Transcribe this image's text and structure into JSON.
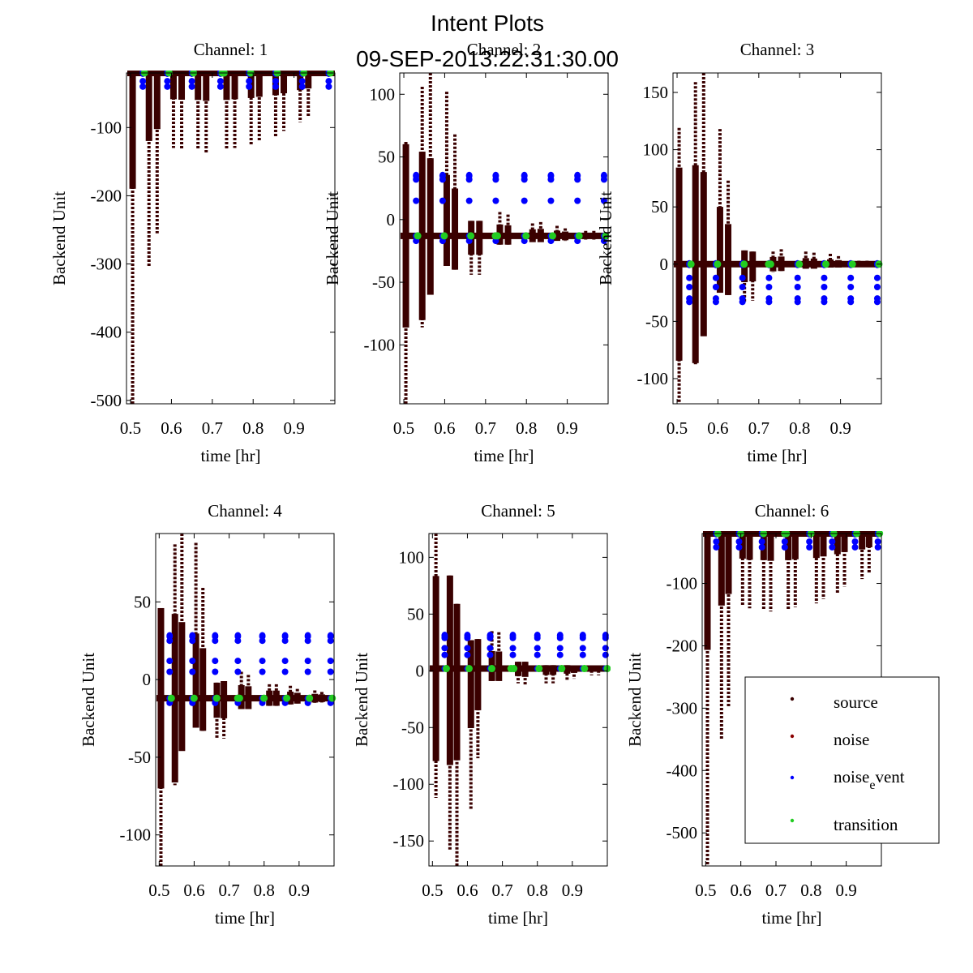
{
  "figure": {
    "title_line1": "Intent Plots",
    "title_line2": "09-SEP-2013:22:31:30.00"
  },
  "colors": {
    "source": "#3a0000",
    "noise": "#8b0000",
    "noise_event": "#0000ff",
    "transition": "#22cc22"
  },
  "legend": {
    "placement": "center-right of Channel 6",
    "entries": [
      {
        "label": "source",
        "color_key": "source"
      },
      {
        "label": "noise",
        "color_key": "noise"
      },
      {
        "label": "noise",
        "sub": "e",
        "rest": "vent",
        "color_key": "noise_event"
      },
      {
        "label": "transition",
        "color_key": "transition"
      }
    ]
  },
  "chart_data": [
    {
      "type": "scatter",
      "title": "Channel: 1",
      "xlabel": "time [hr]",
      "ylabel": "Backend Unit",
      "xlim": [
        0.49,
        1.0
      ],
      "ylim": [
        -505,
        -20
      ],
      "xticks": [
        0.5,
        0.6,
        0.7,
        0.8,
        0.9
      ],
      "yticks": [
        -100,
        -200,
        -300,
        -400,
        -500
      ],
      "baseline": -20,
      "scans": [
        {
          "t": 0.505,
          "min": -505,
          "max": -20
        },
        {
          "t": 0.545,
          "min": -305,
          "max": -20
        },
        {
          "t": 0.565,
          "min": -255,
          "max": -20
        },
        {
          "t": 0.605,
          "min": -130,
          "max": -20
        },
        {
          "t": 0.625,
          "min": -132,
          "max": -20
        },
        {
          "t": 0.665,
          "min": -133,
          "max": -20
        },
        {
          "t": 0.685,
          "min": -137,
          "max": -20
        },
        {
          "t": 0.735,
          "min": -133,
          "max": -20
        },
        {
          "t": 0.755,
          "min": -130,
          "max": -20
        },
        {
          "t": 0.795,
          "min": -125,
          "max": -20
        },
        {
          "t": 0.815,
          "min": -120,
          "max": -20
        },
        {
          "t": 0.855,
          "min": -113,
          "max": -20
        },
        {
          "t": 0.875,
          "min": -105,
          "max": -20
        },
        {
          "t": 0.915,
          "min": -92,
          "max": -20
        },
        {
          "t": 0.935,
          "min": -85,
          "max": -20
        }
      ],
      "noise_event": {
        "times": [
          0.53,
          0.59,
          0.65,
          0.72,
          0.79,
          0.855,
          0.92,
          0.985
        ],
        "values": [
          -20,
          -32,
          -40
        ]
      },
      "transition": {
        "times": [
          0.53,
          0.59,
          0.65,
          0.72,
          0.725,
          0.79,
          0.855,
          0.92,
          0.985
        ],
        "value": -20
      }
    },
    {
      "type": "scatter",
      "title": "Channel: 2",
      "xlabel": "time [hr]",
      "ylabel": "Backend Unit",
      "xlim": [
        0.49,
        1.0
      ],
      "ylim": [
        -147,
        117
      ],
      "xticks": [
        0.5,
        0.6,
        0.7,
        0.8,
        0.9
      ],
      "yticks": [
        100,
        50,
        0,
        -50,
        -100
      ],
      "baseline": -13,
      "scans": [
        {
          "t": 0.505,
          "min": -147,
          "max": 62
        },
        {
          "t": 0.545,
          "min": -86,
          "max": 106
        },
        {
          "t": 0.565,
          "min": -60,
          "max": 117
        },
        {
          "t": 0.605,
          "min": -37,
          "max": 102
        },
        {
          "t": 0.625,
          "min": -40,
          "max": 68
        },
        {
          "t": 0.665,
          "min": -44,
          "max": -1
        },
        {
          "t": 0.685,
          "min": -44,
          "max": -1
        },
        {
          "t": 0.735,
          "min": -20,
          "max": 6
        },
        {
          "t": 0.755,
          "min": -20,
          "max": 4
        },
        {
          "t": 0.815,
          "min": -18,
          "max": -3
        },
        {
          "t": 0.835,
          "min": -18,
          "max": -2
        },
        {
          "t": 0.875,
          "min": -17,
          "max": -5
        },
        {
          "t": 0.895,
          "min": -17,
          "max": -7
        },
        {
          "t": 0.945,
          "min": -16,
          "max": -9
        },
        {
          "t": 0.965,
          "min": -16,
          "max": -9
        }
      ],
      "noise_event": {
        "times": [
          0.53,
          0.595,
          0.66,
          0.725,
          0.795,
          0.86,
          0.925,
          0.99
        ],
        "values": [
          35,
          32,
          15,
          -13,
          -17
        ]
      },
      "transition": {
        "times": [
          0.53,
          0.595,
          0.66,
          0.72,
          0.725,
          0.795,
          0.86,
          0.925,
          0.99
        ],
        "value": -13
      }
    },
    {
      "type": "scatter",
      "title": "Channel: 3",
      "xlabel": "time [hr]",
      "ylabel": "Backend Unit",
      "xlim": [
        0.49,
        1.0
      ],
      "ylim": [
        -122,
        167
      ],
      "xticks": [
        0.5,
        0.6,
        0.7,
        0.8,
        0.9
      ],
      "yticks": [
        150,
        100,
        50,
        0,
        -50,
        -100
      ],
      "baseline": 0,
      "scans": [
        {
          "t": 0.505,
          "min": -122,
          "max": 119
        },
        {
          "t": 0.545,
          "min": -88,
          "max": 159
        },
        {
          "t": 0.565,
          "min": -63,
          "max": 167
        },
        {
          "t": 0.605,
          "min": -25,
          "max": 118
        },
        {
          "t": 0.625,
          "min": -27,
          "max": 73
        },
        {
          "t": 0.665,
          "min": -33,
          "max": 12
        },
        {
          "t": 0.685,
          "min": -32,
          "max": 11
        },
        {
          "t": 0.735,
          "min": -7,
          "max": 11
        },
        {
          "t": 0.755,
          "min": -6,
          "max": 13
        },
        {
          "t": 0.815,
          "min": -4,
          "max": 11
        },
        {
          "t": 0.835,
          "min": -4,
          "max": 10
        },
        {
          "t": 0.875,
          "min": -3,
          "max": 9
        },
        {
          "t": 0.895,
          "min": -3,
          "max": 7
        },
        {
          "t": 0.945,
          "min": -2,
          "max": 3
        },
        {
          "t": 0.965,
          "min": -2,
          "max": 3
        }
      ],
      "noise_event": {
        "times": [
          0.53,
          0.595,
          0.66,
          0.725,
          0.795,
          0.86,
          0.925,
          0.99
        ],
        "values": [
          0,
          -12,
          -20,
          -30,
          -33
        ]
      },
      "transition": {
        "times": [
          0.53,
          0.595,
          0.66,
          0.72,
          0.725,
          0.795,
          0.86,
          0.925,
          0.99
        ],
        "value": 0
      }
    },
    {
      "type": "scatter",
      "title": "Channel: 4",
      "xlabel": "time [hr]",
      "ylabel": "Backend Unit",
      "xlim": [
        0.49,
        1.0
      ],
      "ylim": [
        -120,
        94
      ],
      "xticks": [
        0.5,
        0.6,
        0.7,
        0.8,
        0.9
      ],
      "yticks": [
        50,
        0,
        -50,
        -100
      ],
      "baseline": -12,
      "scans": [
        {
          "t": 0.505,
          "min": -120,
          "max": 46
        },
        {
          "t": 0.545,
          "min": -68,
          "max": 87
        },
        {
          "t": 0.565,
          "min": -46,
          "max": 94
        },
        {
          "t": 0.605,
          "min": -31,
          "max": 88
        },
        {
          "t": 0.625,
          "min": -33,
          "max": 59
        },
        {
          "t": 0.665,
          "min": -38,
          "max": -2
        },
        {
          "t": 0.685,
          "min": -38,
          "max": -1
        },
        {
          "t": 0.735,
          "min": -19,
          "max": 5
        },
        {
          "t": 0.755,
          "min": -19,
          "max": 3
        },
        {
          "t": 0.815,
          "min": -17,
          "max": -3
        },
        {
          "t": 0.835,
          "min": -17,
          "max": -3
        },
        {
          "t": 0.875,
          "min": -16,
          "max": -4
        },
        {
          "t": 0.895,
          "min": -16,
          "max": -6
        },
        {
          "t": 0.945,
          "min": -15,
          "max": -7
        },
        {
          "t": 0.965,
          "min": -15,
          "max": -8
        }
      ],
      "noise_event": {
        "times": [
          0.53,
          0.595,
          0.66,
          0.725,
          0.795,
          0.86,
          0.925,
          0.99
        ],
        "values": [
          28,
          25,
          12,
          5,
          -12,
          -15
        ]
      },
      "transition": {
        "times": [
          0.53,
          0.595,
          0.66,
          0.72,
          0.725,
          0.795,
          0.86,
          0.925,
          0.99
        ],
        "value": -12
      }
    },
    {
      "type": "scatter",
      "title": "Channel: 5",
      "xlabel": "time [hr]",
      "ylabel": "Backend Unit",
      "xlim": [
        0.49,
        1.0
      ],
      "ylim": [
        -172,
        121
      ],
      "xticks": [
        0.5,
        0.6,
        0.7,
        0.8,
        0.9
      ],
      "yticks": [
        100,
        50,
        0,
        -50,
        -100,
        -150
      ],
      "baseline": 2,
      "scans": [
        {
          "t": 0.51,
          "min": -112,
          "max": 121
        },
        {
          "t": 0.55,
          "min": -159,
          "max": 84
        },
        {
          "t": 0.57,
          "min": -172,
          "max": 59
        },
        {
          "t": 0.61,
          "min": -123,
          "max": 27
        },
        {
          "t": 0.63,
          "min": -77,
          "max": 28
        },
        {
          "t": 0.67,
          "min": -9,
          "max": 35
        },
        {
          "t": 0.69,
          "min": -9,
          "max": 34
        },
        {
          "t": 0.745,
          "min": -11,
          "max": 8
        },
        {
          "t": 0.765,
          "min": -13,
          "max": 8
        },
        {
          "t": 0.825,
          "min": -11,
          "max": 5
        },
        {
          "t": 0.845,
          "min": -11,
          "max": 5
        },
        {
          "t": 0.885,
          "min": -8,
          "max": 5
        },
        {
          "t": 0.905,
          "min": -7,
          "max": 4
        },
        {
          "t": 0.955,
          "min": -4,
          "max": 4
        },
        {
          "t": 0.975,
          "min": -4,
          "max": 4
        }
      ],
      "noise_event": {
        "times": [
          0.535,
          0.6,
          0.665,
          0.73,
          0.8,
          0.865,
          0.93,
          0.995
        ],
        "values": [
          31,
          29,
          20,
          14,
          2
        ]
      },
      "transition": {
        "times": [
          0.535,
          0.6,
          0.665,
          0.72,
          0.728,
          0.8,
          0.865,
          0.93,
          0.995
        ],
        "value": 2
      }
    },
    {
      "type": "scatter",
      "title": "Channel: 6",
      "xlabel": "time [hr]",
      "ylabel": "Backend Unit",
      "xlim": [
        0.49,
        1.0
      ],
      "ylim": [
        -553,
        -20
      ],
      "xticks": [
        0.5,
        0.6,
        0.7,
        0.8,
        0.9
      ],
      "yticks": [
        -100,
        -200,
        -300,
        -400,
        -500
      ],
      "baseline": -20,
      "scans": [
        {
          "t": 0.505,
          "min": -553,
          "max": -20
        },
        {
          "t": 0.545,
          "min": -350,
          "max": -20
        },
        {
          "t": 0.565,
          "min": -297,
          "max": -20
        },
        {
          "t": 0.605,
          "min": -135,
          "max": -20
        },
        {
          "t": 0.625,
          "min": -140,
          "max": -20
        },
        {
          "t": 0.665,
          "min": -142,
          "max": -20
        },
        {
          "t": 0.685,
          "min": -145,
          "max": -20
        },
        {
          "t": 0.735,
          "min": -142,
          "max": -20
        },
        {
          "t": 0.755,
          "min": -138,
          "max": -20
        },
        {
          "t": 0.815,
          "min": -132,
          "max": -20
        },
        {
          "t": 0.835,
          "min": -125,
          "max": -20
        },
        {
          "t": 0.875,
          "min": -115,
          "max": -20
        },
        {
          "t": 0.895,
          "min": -105,
          "max": -20
        },
        {
          "t": 0.945,
          "min": -93,
          "max": -20
        },
        {
          "t": 0.965,
          "min": -83,
          "max": -20
        }
      ],
      "noise_event": {
        "times": [
          0.53,
          0.595,
          0.66,
          0.725,
          0.795,
          0.86,
          0.925,
          0.99
        ],
        "values": [
          -20,
          -33,
          -42
        ]
      },
      "transition": {
        "times": [
          0.53,
          0.595,
          0.66,
          0.72,
          0.725,
          0.795,
          0.86,
          0.925,
          0.99
        ],
        "value": -20
      }
    }
  ]
}
